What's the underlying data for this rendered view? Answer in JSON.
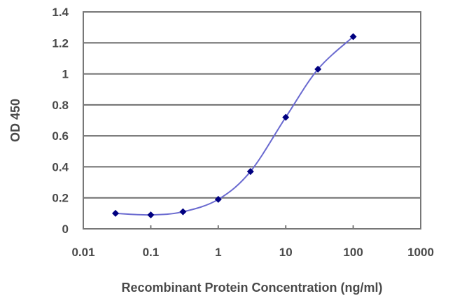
{
  "chart_data": {
    "type": "line",
    "title": "",
    "xlabel": "Recombinant Protein Concentration (ng/ml)",
    "ylabel": "OD 450",
    "xscale": "log",
    "xlim": [
      0.01,
      1000
    ],
    "ylim": [
      0,
      1.4
    ],
    "grid": {
      "horizontal": true,
      "vertical": false
    },
    "legend": null,
    "x_ticks": [
      "0.01",
      "0.1",
      "1",
      "10",
      "100",
      "1000"
    ],
    "y_ticks": [
      "0",
      "0.2",
      "0.4",
      "0.6",
      "0.8",
      "1",
      "1.2",
      "1.4"
    ],
    "series": [
      {
        "name": "OD 450",
        "color": "#000080",
        "line_color": "#6a6ad0",
        "marker": "diamond",
        "x": [
          0.03,
          0.1,
          0.3,
          1,
          3,
          10,
          30,
          100
        ],
        "values": [
          0.1,
          0.09,
          0.11,
          0.19,
          0.37,
          0.72,
          1.03,
          1.24
        ]
      }
    ]
  },
  "axes": {
    "x_title": "Recombinant Protein Concentration (ng/ml)",
    "y_title": "OD 450"
  }
}
